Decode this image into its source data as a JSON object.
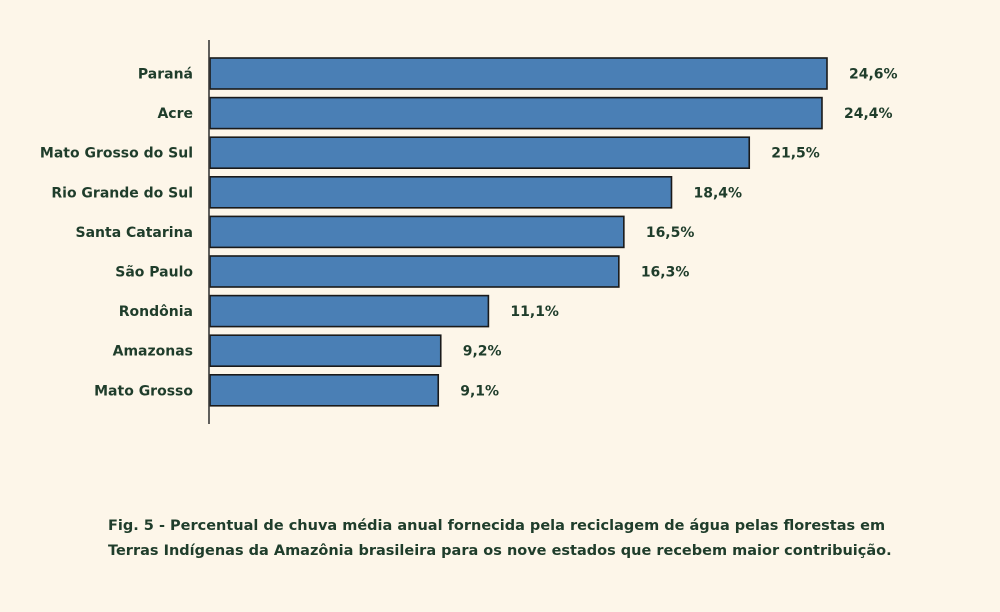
{
  "chart_data": {
    "type": "bar",
    "orientation": "horizontal",
    "categories": [
      "Paraná",
      "Acre",
      "Mato Grosso do Sul",
      "Rio Grande do Sul",
      "Santa Catarina",
      "São Paulo",
      "Rondônia",
      "Amazonas",
      "Mato Grosso"
    ],
    "values": [
      24.6,
      24.4,
      21.5,
      18.4,
      16.5,
      16.3,
      11.1,
      9.2,
      9.1
    ],
    "value_labels": [
      "24,6%",
      "24,4%",
      "21,5%",
      "18,4%",
      "16,5%",
      "16,3%",
      "11,1%",
      "9,2%",
      "9,1%"
    ],
    "xlim": [
      0,
      24.6
    ],
    "grid": false,
    "bar_color": "#4a7fb5",
    "bar_edge_color": "#1a1a1a"
  },
  "caption": {
    "line1": "Fig. 5 - Percentual de chuva média anual fornecida pela reciclagem de água pelas florestas em",
    "line2": "Terras Indígenas da Amazônia brasileira para os nove estados que recebem maior contribuição."
  },
  "colors": {
    "background": "#fdf6e9",
    "text": "#1f3d2b"
  }
}
